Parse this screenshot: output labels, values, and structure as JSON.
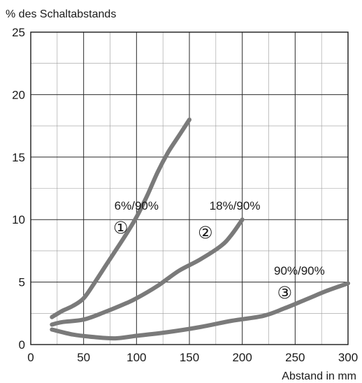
{
  "chart_data": {
    "type": "line",
    "ylabel": "% des Schaltabstands",
    "xlabel": "Abstand in mm",
    "xlim": [
      0,
      300
    ],
    "ylim": [
      0,
      25
    ],
    "x_ticks": [
      0,
      50,
      100,
      150,
      200,
      250,
      300
    ],
    "y_ticks": [
      0,
      5,
      10,
      15,
      20,
      25
    ],
    "x_minor_step": 25,
    "y_minor_step": 2.5,
    "grid": true,
    "series_color": "#7a7a7a",
    "series": [
      {
        "name": "6%/90%",
        "marker": "①",
        "label_at": {
          "x": 100,
          "y": 10.8
        },
        "marker_at": {
          "x": 85,
          "y": 8.9
        },
        "points": [
          [
            20,
            2.2
          ],
          [
            30,
            2.7
          ],
          [
            40,
            3.1
          ],
          [
            50,
            3.7
          ],
          [
            60,
            4.9
          ],
          [
            70,
            6.2
          ],
          [
            80,
            7.5
          ],
          [
            90,
            8.8
          ],
          [
            100,
            10.2
          ],
          [
            110,
            11.9
          ],
          [
            120,
            13.8
          ],
          [
            130,
            15.4
          ],
          [
            140,
            16.7
          ],
          [
            150,
            18.0
          ]
        ]
      },
      {
        "name": "18%/90%",
        "marker": "②",
        "label_at": {
          "x": 193,
          "y": 10.8
        },
        "marker_at": {
          "x": 165,
          "y": 8.5
        },
        "points": [
          [
            20,
            1.6
          ],
          [
            30,
            1.8
          ],
          [
            50,
            2.0
          ],
          [
            70,
            2.6
          ],
          [
            90,
            3.3
          ],
          [
            100,
            3.7
          ],
          [
            120,
            4.7
          ],
          [
            140,
            5.9
          ],
          [
            160,
            6.8
          ],
          [
            180,
            7.9
          ],
          [
            190,
            8.8
          ],
          [
            200,
            10.0
          ]
        ]
      },
      {
        "name": "90%/90%",
        "marker": "③",
        "label_at": {
          "x": 254,
          "y": 5.6
        },
        "marker_at": {
          "x": 240,
          "y": 3.7
        },
        "points": [
          [
            20,
            1.2
          ],
          [
            40,
            0.8
          ],
          [
            60,
            0.6
          ],
          [
            80,
            0.5
          ],
          [
            100,
            0.7
          ],
          [
            130,
            1.0
          ],
          [
            160,
            1.4
          ],
          [
            190,
            1.9
          ],
          [
            220,
            2.3
          ],
          [
            240,
            2.9
          ],
          [
            260,
            3.6
          ],
          [
            280,
            4.3
          ],
          [
            300,
            4.9
          ]
        ]
      }
    ]
  }
}
